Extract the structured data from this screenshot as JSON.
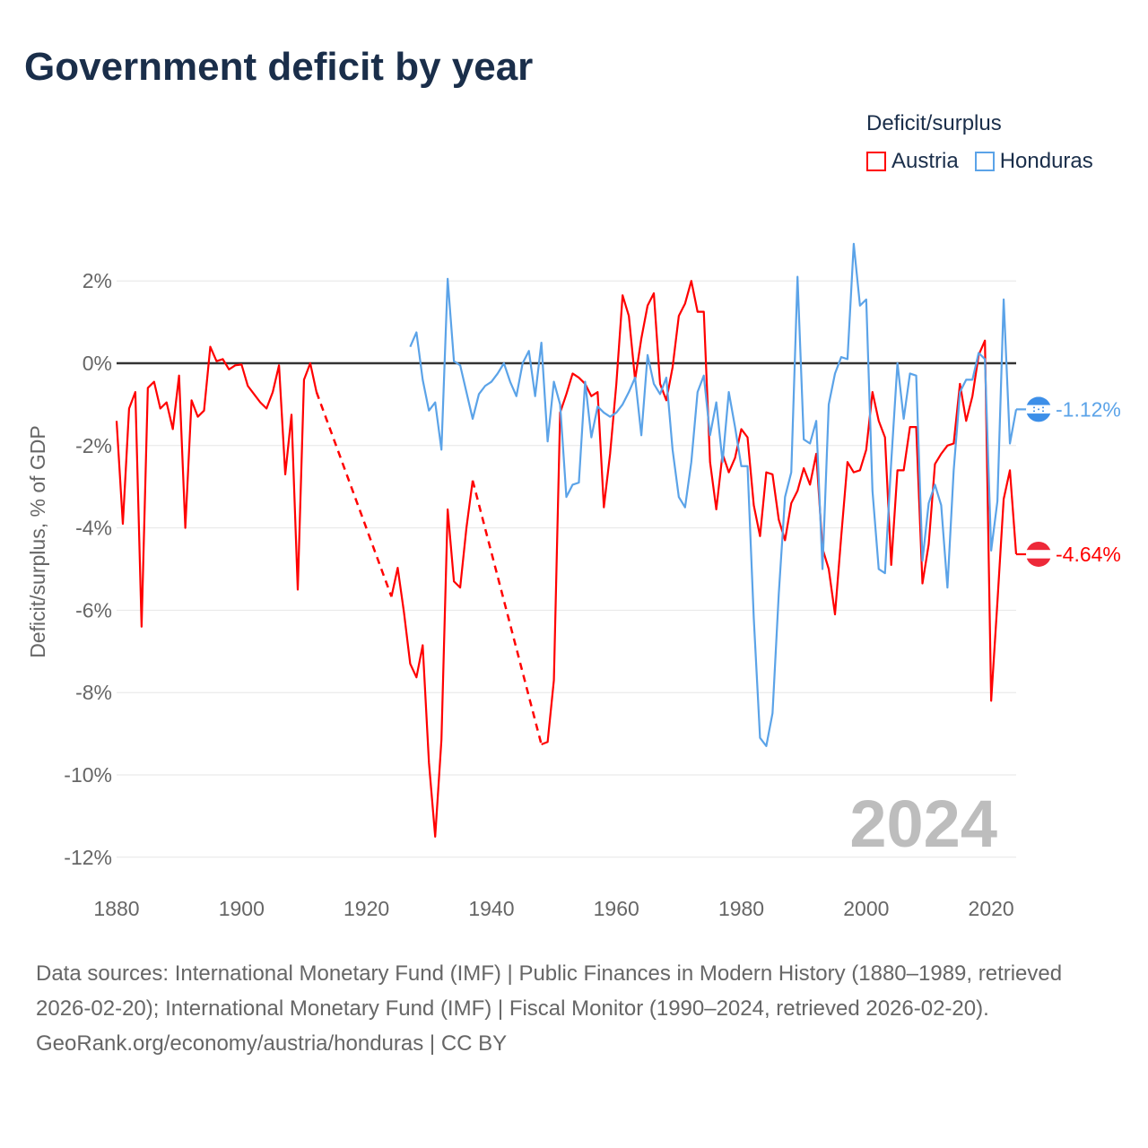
{
  "title": "Government deficit by year",
  "legend": {
    "title": "Deficit/surplus",
    "items": [
      {
        "name": "Austria",
        "color": "#ff0000"
      },
      {
        "name": "Honduras",
        "color": "#5ba3e8"
      }
    ]
  },
  "year_watermark": "2024",
  "footer": {
    "sources": "Data sources: International Monetary Fund (IMF) | Public Finances in Modern History (1880–1989, retrieved 2026-02-20); International Monetary Fund (IMF) | Fiscal Monitor (1990–2024, retrieved 2026-02-20).",
    "credit": "GeoRank.org/economy/austria/honduras | CC BY"
  },
  "chart_data": {
    "type": "line",
    "title": "Government deficit by year",
    "xlabel": "",
    "ylabel": "Deficit/surplus, % of GDP",
    "xlim": [
      1880,
      2024
    ],
    "ylim": [
      -12,
      2
    ],
    "x_ticks": [
      1880,
      1900,
      1920,
      1940,
      1960,
      1980,
      2000,
      2020
    ],
    "x_tick_labels": [
      "1880",
      "1900",
      "1920",
      "1940",
      "1960",
      "1980",
      "2000",
      "2020"
    ],
    "y_ticks": [
      2,
      0,
      -2,
      -4,
      -6,
      -8,
      -10,
      -12
    ],
    "y_tick_labels": [
      "2%",
      "0%",
      "-2%",
      "-4%",
      "-6%",
      "-8%",
      "-10%",
      "-12%"
    ],
    "grid": true,
    "legend_position": "top-right",
    "series": [
      {
        "name": "Austria",
        "color": "#ff0000",
        "end_label": "-4.64%",
        "points": [
          [
            1880,
            -1.4
          ],
          [
            1881,
            -3.9
          ],
          [
            1882,
            -1.1
          ],
          [
            1883,
            -0.7
          ],
          [
            1884,
            -6.4
          ],
          [
            1885,
            -0.6
          ],
          [
            1886,
            -0.45
          ],
          [
            1887,
            -1.1
          ],
          [
            1888,
            -0.95
          ],
          [
            1889,
            -1.6
          ],
          [
            1890,
            -0.3
          ],
          [
            1891,
            -4.0
          ],
          [
            1892,
            -0.9
          ],
          [
            1893,
            -1.3
          ],
          [
            1894,
            -1.15
          ],
          [
            1895,
            0.4
          ],
          [
            1896,
            0.05
          ],
          [
            1897,
            0.1
          ],
          [
            1898,
            -0.15
          ],
          [
            1899,
            -0.05
          ],
          [
            1900,
            -0.03
          ],
          [
            1901,
            -0.55
          ],
          [
            1902,
            -0.75
          ],
          [
            1903,
            -0.95
          ],
          [
            1904,
            -1.1
          ],
          [
            1905,
            -0.7
          ],
          [
            1906,
            -0.05
          ],
          [
            1907,
            -2.7
          ],
          [
            1908,
            -1.25
          ],
          [
            1909,
            -5.5
          ],
          [
            1910,
            -0.4
          ],
          [
            1911,
            0.0
          ],
          [
            1912,
            -0.7
          ],
          [
            1924,
            -5.67
          ],
          [
            1925,
            -4.97
          ],
          [
            1926,
            -6.05
          ],
          [
            1927,
            -7.3
          ],
          [
            1928,
            -7.63
          ],
          [
            1929,
            -6.85
          ],
          [
            1930,
            -9.7
          ],
          [
            1931,
            -11.5
          ],
          [
            1932,
            -9.15
          ],
          [
            1933,
            -3.55
          ],
          [
            1934,
            -5.3
          ],
          [
            1935,
            -5.45
          ],
          [
            1936,
            -4.0
          ],
          [
            1937,
            -2.85
          ],
          [
            1948,
            -9.26
          ],
          [
            1949,
            -9.2
          ],
          [
            1950,
            -7.7
          ],
          [
            1951,
            -1.2
          ],
          [
            1952,
            -0.75
          ],
          [
            1953,
            -0.25
          ],
          [
            1954,
            -0.35
          ],
          [
            1955,
            -0.5
          ],
          [
            1956,
            -0.8
          ],
          [
            1957,
            -0.7
          ],
          [
            1958,
            -3.5
          ],
          [
            1959,
            -2.2
          ],
          [
            1960,
            -0.5
          ],
          [
            1961,
            1.65
          ],
          [
            1962,
            1.15
          ],
          [
            1963,
            -0.4
          ],
          [
            1964,
            0.6
          ],
          [
            1965,
            1.4
          ],
          [
            1966,
            1.7
          ],
          [
            1967,
            -0.5
          ],
          [
            1968,
            -0.9
          ],
          [
            1969,
            -0.1
          ],
          [
            1970,
            1.15
          ],
          [
            1971,
            1.45
          ],
          [
            1972,
            2.0
          ],
          [
            1973,
            1.25
          ],
          [
            1974,
            1.25
          ],
          [
            1975,
            -2.4
          ],
          [
            1976,
            -3.55
          ],
          [
            1977,
            -2.2
          ],
          [
            1978,
            -2.65
          ],
          [
            1979,
            -2.3
          ],
          [
            1980,
            -1.6
          ],
          [
            1981,
            -1.8
          ],
          [
            1982,
            -3.45
          ],
          [
            1983,
            -4.2
          ],
          [
            1984,
            -2.65
          ],
          [
            1985,
            -2.7
          ],
          [
            1986,
            -3.8
          ],
          [
            1987,
            -4.3
          ],
          [
            1988,
            -3.4
          ],
          [
            1989,
            -3.1
          ],
          [
            1990,
            -2.55
          ],
          [
            1991,
            -2.95
          ],
          [
            1992,
            -2.2
          ],
          [
            1993,
            -4.5
          ],
          [
            1994,
            -5.0
          ],
          [
            1995,
            -6.1
          ],
          [
            1996,
            -4.2
          ],
          [
            1997,
            -2.4
          ],
          [
            1998,
            -2.65
          ],
          [
            1999,
            -2.6
          ],
          [
            2000,
            -2.1
          ],
          [
            2001,
            -0.7
          ],
          [
            2002,
            -1.4
          ],
          [
            2003,
            -1.8
          ],
          [
            2004,
            -4.9
          ],
          [
            2005,
            -2.6
          ],
          [
            2006,
            -2.6
          ],
          [
            2007,
            -1.55
          ],
          [
            2008,
            -1.55
          ],
          [
            2009,
            -5.35
          ],
          [
            2010,
            -4.4
          ],
          [
            2011,
            -2.45
          ],
          [
            2012,
            -2.2
          ],
          [
            2013,
            -2.0
          ],
          [
            2014,
            -1.95
          ],
          [
            2015,
            -0.5
          ],
          [
            2016,
            -1.4
          ],
          [
            2017,
            -0.8
          ],
          [
            2018,
            0.2
          ],
          [
            2019,
            0.55
          ],
          [
            2020,
            -8.2
          ],
          [
            2021,
            -5.8
          ],
          [
            2022,
            -3.3
          ],
          [
            2023,
            -2.6
          ],
          [
            2024,
            -4.64
          ]
        ]
      },
      {
        "name": "Honduras",
        "color": "#5ba3e8",
        "end_label": "-1.12%",
        "points": [
          [
            1927,
            0.4
          ],
          [
            1928,
            0.75
          ],
          [
            1929,
            -0.4
          ],
          [
            1930,
            -1.15
          ],
          [
            1931,
            -0.95
          ],
          [
            1932,
            -2.1
          ],
          [
            1933,
            2.05
          ],
          [
            1934,
            0.05
          ],
          [
            1935,
            -0.05
          ],
          [
            1936,
            -0.7
          ],
          [
            1937,
            -1.35
          ],
          [
            1938,
            -0.75
          ],
          [
            1939,
            -0.55
          ],
          [
            1940,
            -0.45
          ],
          [
            1941,
            -0.25
          ],
          [
            1942,
            0.0
          ],
          [
            1943,
            -0.45
          ],
          [
            1944,
            -0.8
          ],
          [
            1945,
            0.0
          ],
          [
            1946,
            0.3
          ],
          [
            1947,
            -0.8
          ],
          [
            1948,
            0.5
          ],
          [
            1949,
            -1.9
          ],
          [
            1950,
            -0.45
          ],
          [
            1951,
            -1.0
          ],
          [
            1952,
            -3.25
          ],
          [
            1953,
            -2.95
          ],
          [
            1954,
            -2.9
          ],
          [
            1955,
            -0.45
          ],
          [
            1956,
            -1.8
          ],
          [
            1957,
            -1.05
          ],
          [
            1958,
            -1.2
          ],
          [
            1959,
            -1.3
          ],
          [
            1960,
            -1.2
          ],
          [
            1961,
            -1.0
          ],
          [
            1962,
            -0.7
          ],
          [
            1963,
            -0.35
          ],
          [
            1964,
            -1.75
          ],
          [
            1965,
            0.2
          ],
          [
            1966,
            -0.5
          ],
          [
            1967,
            -0.75
          ],
          [
            1968,
            -0.35
          ],
          [
            1969,
            -2.1
          ],
          [
            1970,
            -3.25
          ],
          [
            1971,
            -3.5
          ],
          [
            1972,
            -2.4
          ],
          [
            1973,
            -0.7
          ],
          [
            1974,
            -0.3
          ],
          [
            1975,
            -1.75
          ],
          [
            1976,
            -0.95
          ],
          [
            1977,
            -2.4
          ],
          [
            1978,
            -0.7
          ],
          [
            1979,
            -1.55
          ],
          [
            1980,
            -2.5
          ],
          [
            1981,
            -2.5
          ],
          [
            1982,
            -6.2
          ],
          [
            1983,
            -9.1
          ],
          [
            1984,
            -9.3
          ],
          [
            1985,
            -8.5
          ],
          [
            1986,
            -5.6
          ],
          [
            1987,
            -3.25
          ],
          [
            1988,
            -2.65
          ],
          [
            1989,
            2.1
          ],
          [
            1990,
            -1.85
          ],
          [
            1991,
            -1.95
          ],
          [
            1992,
            -1.4
          ],
          [
            1993,
            -5.0
          ],
          [
            1994,
            -1.0
          ],
          [
            1995,
            -0.25
          ],
          [
            1996,
            0.15
          ],
          [
            1997,
            0.1
          ],
          [
            1998,
            2.9
          ],
          [
            1999,
            1.4
          ],
          [
            2000,
            1.55
          ],
          [
            2001,
            -3.1
          ],
          [
            2002,
            -5.0
          ],
          [
            2003,
            -5.1
          ],
          [
            2004,
            -2.4
          ],
          [
            2005,
            0.0
          ],
          [
            2006,
            -1.35
          ],
          [
            2007,
            -0.25
          ],
          [
            2008,
            -0.3
          ],
          [
            2009,
            -4.8
          ],
          [
            2010,
            -3.4
          ],
          [
            2011,
            -2.95
          ],
          [
            2012,
            -3.45
          ],
          [
            2013,
            -5.45
          ],
          [
            2014,
            -2.6
          ],
          [
            2015,
            -0.7
          ],
          [
            2016,
            -0.4
          ],
          [
            2017,
            -0.4
          ],
          [
            2018,
            0.25
          ],
          [
            2019,
            0.1
          ],
          [
            2020,
            -4.55
          ],
          [
            2021,
            -3.35
          ],
          [
            2022,
            1.55
          ],
          [
            2023,
            -1.95
          ],
          [
            2024,
            -1.12
          ]
        ]
      }
    ]
  }
}
